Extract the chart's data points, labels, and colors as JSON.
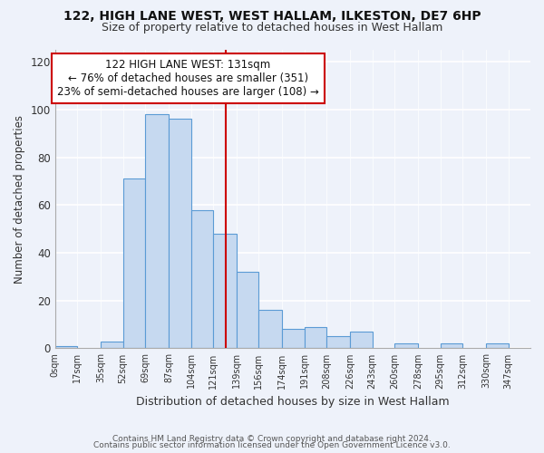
{
  "title": "122, HIGH LANE WEST, WEST HALLAM, ILKESTON, DE7 6HP",
  "subtitle": "Size of property relative to detached houses in West Hallam",
  "xlabel": "Distribution of detached houses by size in West Hallam",
  "ylabel": "Number of detached properties",
  "bar_color": "#c6d9f0",
  "bar_edge_color": "#5b9bd5",
  "background_color": "#eef2fa",
  "tick_labels": [
    "0sqm",
    "17sqm",
    "35sqm",
    "52sqm",
    "69sqm",
    "87sqm",
    "104sqm",
    "121sqm",
    "139sqm",
    "156sqm",
    "174sqm",
    "191sqm",
    "208sqm",
    "226sqm",
    "243sqm",
    "260sqm",
    "278sqm",
    "295sqm",
    "312sqm",
    "330sqm",
    "347sqm"
  ],
  "bar_values": [
    1,
    0,
    3,
    71,
    98,
    96,
    58,
    48,
    32,
    16,
    8,
    9,
    5,
    7,
    0,
    2,
    0,
    2,
    0,
    2
  ],
  "bin_edges": [
    0,
    17,
    35,
    52,
    69,
    87,
    104,
    121,
    139,
    156,
    174,
    191,
    208,
    226,
    243,
    260,
    278,
    295,
    312,
    330,
    347
  ],
  "vline_x": 131,
  "vline_color": "#cc0000",
  "ylim": [
    0,
    125
  ],
  "yticks": [
    0,
    20,
    40,
    60,
    80,
    100,
    120
  ],
  "annotation_title": "122 HIGH LANE WEST: 131sqm",
  "annotation_line1": "← 76% of detached houses are smaller (351)",
  "annotation_line2": "23% of semi-detached houses are larger (108) →",
  "annotation_box_color": "#ffffff",
  "annotation_box_edge": "#cc0000",
  "footer1": "Contains HM Land Registry data © Crown copyright and database right 2024.",
  "footer2": "Contains public sector information licensed under the Open Government Licence v3.0."
}
